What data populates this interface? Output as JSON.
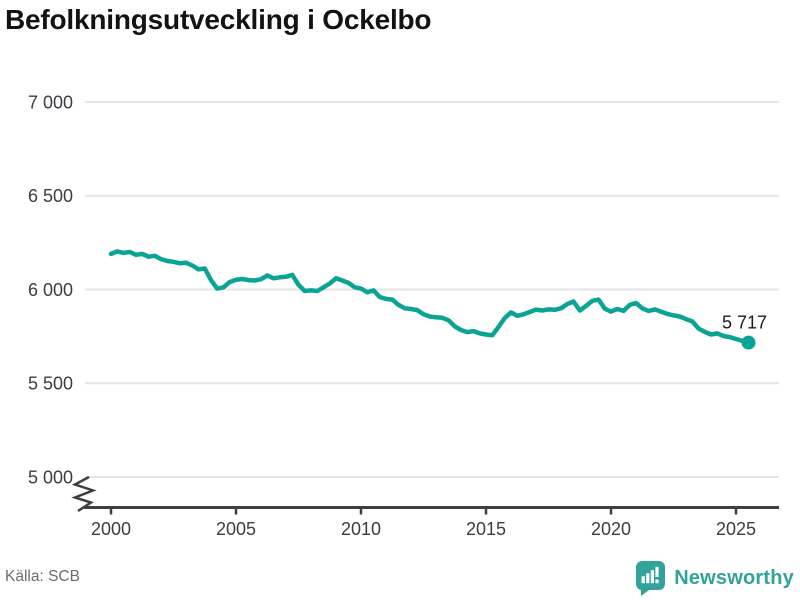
{
  "header": {
    "title": "Befolkningsutveckling i Ockelbo"
  },
  "footer": {
    "source_label": "Källa: SCB",
    "brand_name": "Newsworthy",
    "brand_icon": "bar-chart-speech-bubble-icon",
    "brand_color": "#31a39a"
  },
  "chart_data": {
    "type": "line",
    "title": "Befolkningsutveckling i Ockelbo",
    "xlabel": "",
    "ylabel": "",
    "grid": "horizontal",
    "legend": "none",
    "axis_break_below": 5000,
    "xlim": [
      1998.9,
      2026.7
    ],
    "ylim": [
      5000,
      7000
    ],
    "x_ticks": [
      2000,
      2005,
      2010,
      2015,
      2020,
      2025
    ],
    "x_tick_labels": [
      "2000",
      "2005",
      "2010",
      "2015",
      "2020",
      "2025"
    ],
    "y_ticks": [
      5000,
      5500,
      6000,
      6500,
      7000
    ],
    "y_tick_labels": [
      "5 000",
      "5 500",
      "6 000",
      "6 500",
      "7 000"
    ],
    "end_label": "5 717",
    "end_value": 5717,
    "colors": {
      "line": "#0aa396",
      "grid": "#e4e4e4",
      "axis": "#3f3f42",
      "tick_text": "#3c3c44"
    },
    "series": [
      {
        "name": "Befolkning i Ockelbo",
        "color": "#0aa396",
        "x": [
          2000,
          2000.25,
          2000.5,
          2000.75,
          2001,
          2001.25,
          2001.5,
          2001.75,
          2002,
          2002.25,
          2002.5,
          2002.75,
          2003,
          2003.25,
          2003.5,
          2003.75,
          2004,
          2004.25,
          2004.5,
          2004.75,
          2005,
          2005.25,
          2005.5,
          2005.75,
          2006,
          2006.25,
          2006.5,
          2006.75,
          2007,
          2007.25,
          2007.5,
          2007.75,
          2008,
          2008.25,
          2008.5,
          2008.75,
          2009,
          2009.25,
          2009.5,
          2009.75,
          2010,
          2010.25,
          2010.5,
          2010.75,
          2011,
          2011.25,
          2011.5,
          2011.75,
          2012,
          2012.25,
          2012.5,
          2012.75,
          2013,
          2013.25,
          2013.5,
          2013.75,
          2014,
          2014.25,
          2014.5,
          2014.75,
          2015,
          2015.25,
          2015.5,
          2015.75,
          2016,
          2016.25,
          2016.5,
          2016.75,
          2017,
          2017.25,
          2017.5,
          2017.75,
          2018,
          2018.25,
          2018.5,
          2018.75,
          2019,
          2019.25,
          2019.5,
          2019.75,
          2020,
          2020.25,
          2020.5,
          2020.75,
          2021,
          2021.25,
          2021.5,
          2021.75,
          2022,
          2022.25,
          2022.5,
          2022.75,
          2023,
          2023.25,
          2023.5,
          2023.75,
          2024,
          2024.25,
          2024.5,
          2024.75,
          2025,
          2025.25,
          2025.5
        ],
        "values": [
          6190,
          6203,
          6195,
          6200,
          6185,
          6190,
          6175,
          6180,
          6162,
          6152,
          6148,
          6140,
          6143,
          6128,
          6108,
          6112,
          6050,
          6005,
          6012,
          6040,
          6052,
          6056,
          6050,
          6048,
          6055,
          6075,
          6060,
          6065,
          6068,
          6078,
          6025,
          5992,
          5996,
          5992,
          6012,
          6032,
          6060,
          6048,
          6035,
          6012,
          6005,
          5985,
          5995,
          5960,
          5950,
          5946,
          5918,
          5900,
          5896,
          5890,
          5868,
          5856,
          5852,
          5849,
          5836,
          5803,
          5784,
          5773,
          5778,
          5766,
          5760,
          5756,
          5800,
          5848,
          5878,
          5860,
          5868,
          5880,
          5893,
          5888,
          5894,
          5892,
          5900,
          5922,
          5936,
          5888,
          5912,
          5940,
          5946,
          5898,
          5882,
          5896,
          5886,
          5918,
          5928,
          5900,
          5886,
          5894,
          5882,
          5870,
          5862,
          5856,
          5842,
          5830,
          5792,
          5774,
          5760,
          5766,
          5752,
          5746,
          5736,
          5726,
          5717
        ]
      }
    ]
  }
}
